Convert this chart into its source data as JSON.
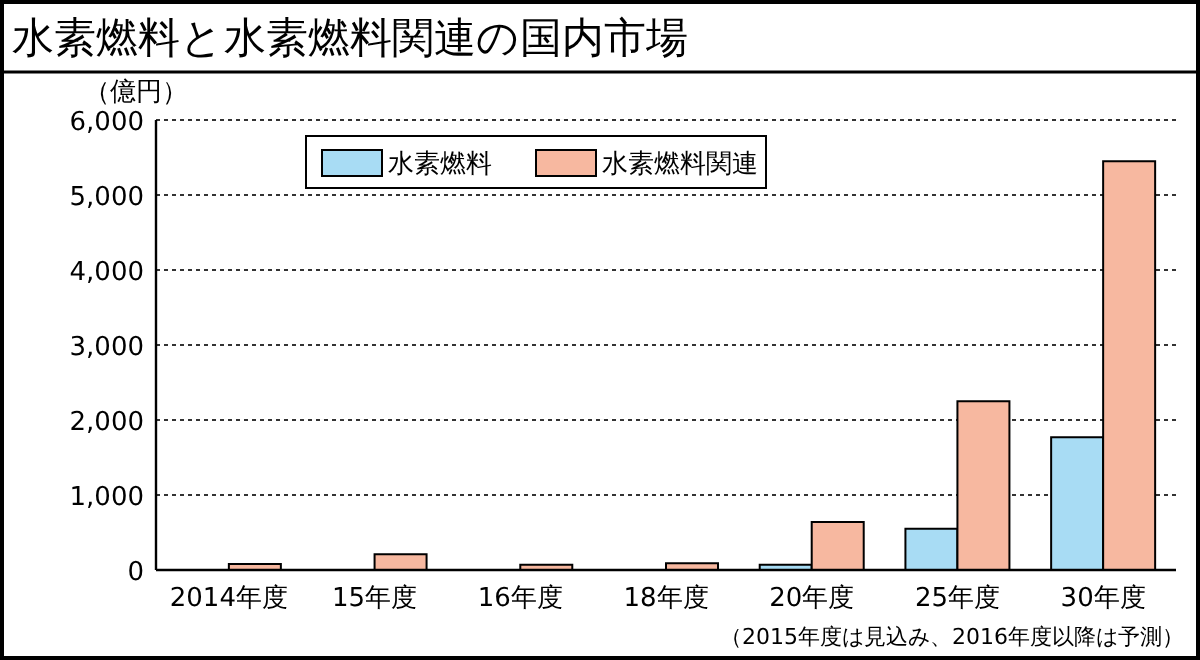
{
  "chart_data": {
    "type": "bar",
    "title": "水素燃料と水素燃料関連の国内市場",
    "ylabel": "（億円）",
    "categories": [
      "2014年度",
      "15年度",
      "16年度",
      "18年度",
      "20年度",
      "25年度",
      "30年度"
    ],
    "series": [
      {
        "name": "水素燃料",
        "color": "#a8dcf4",
        "values": [
          null,
          null,
          null,
          null,
          70,
          550,
          1770
        ]
      },
      {
        "name": "水素燃料関連",
        "color": "#f7b8a0",
        "values": [
          80,
          210,
          70,
          90,
          640,
          2250,
          5450
        ]
      }
    ],
    "ylim": [
      0,
      6000
    ],
    "yticks": [
      {
        "value": 0,
        "label": "0"
      },
      {
        "value": 1000,
        "label": "1,000"
      },
      {
        "value": 2000,
        "label": "2,000"
      },
      {
        "value": 3000,
        "label": "3,000"
      },
      {
        "value": 4000,
        "label": "4,000"
      },
      {
        "value": 5000,
        "label": "5,000"
      },
      {
        "value": 6000,
        "label": "6,000"
      }
    ],
    "grid": "y",
    "legend": "top left",
    "annotations": [
      "（2015年度は見込み、2016年度以降は予測）"
    ]
  }
}
